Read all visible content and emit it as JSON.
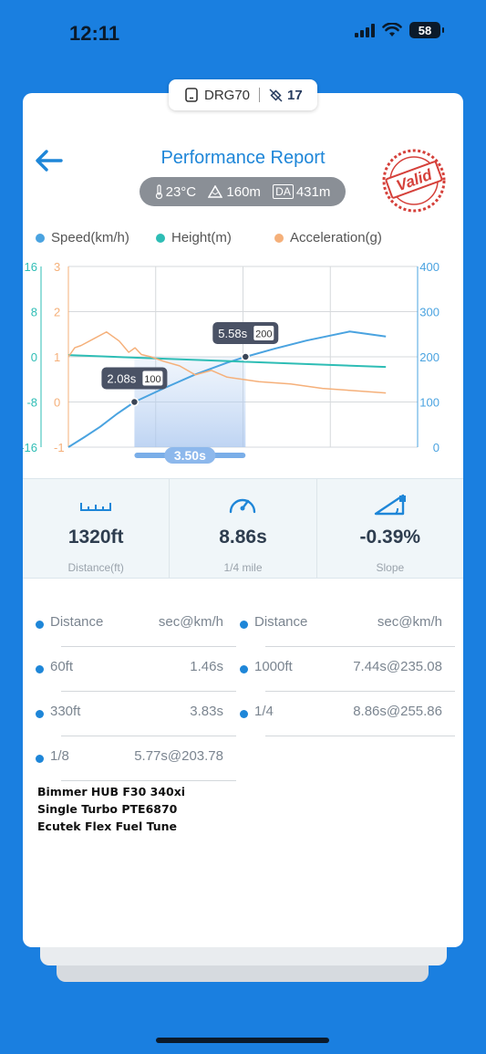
{
  "status": {
    "time": "12:11",
    "battery": "58"
  },
  "device": {
    "name": "DRG70",
    "satellites": "17"
  },
  "header": {
    "title": "Performance Report",
    "stamp": "Valid"
  },
  "conditions": {
    "temp": "23°C",
    "altitude": "160m",
    "da_label": "DA",
    "da_value": "431m"
  },
  "legend": [
    {
      "label": "Speed(km/h)",
      "color": "#4aa3e0"
    },
    {
      "label": "Height(m)",
      "color": "#2ebdb5"
    },
    {
      "label": "Acceleration(g)",
      "color": "#f5b07a"
    }
  ],
  "chart_data": {
    "type": "line",
    "x_range": [
      0,
      11
    ],
    "axes": {
      "height_ticks": [
        "16",
        "8",
        "0",
        "-8",
        "-16"
      ],
      "accel_ticks": [
        "3",
        "2",
        "1",
        "0",
        "-1"
      ],
      "speed_ticks": [
        "400",
        "300",
        "200",
        "100",
        "0"
      ],
      "speed_ylim": [
        0,
        400
      ],
      "height_ylim": [
        -16,
        16
      ],
      "accel_ylim": [
        -1,
        3
      ]
    },
    "series": [
      {
        "name": "Speed(km/h)",
        "color": "#4aa3e0",
        "x": [
          0,
          0.5,
          1,
          1.5,
          2.08,
          3,
          4,
          5,
          5.58,
          6.5,
          7.5,
          8.86,
          10
        ],
        "values": [
          0,
          22,
          45,
          72,
          100,
          130,
          161,
          187,
          200,
          218,
          236,
          256,
          245
        ]
      },
      {
        "name": "Height(m)",
        "color": "#2ebdb5",
        "x": [
          0,
          10
        ],
        "values": [
          0.3,
          -1.8
        ]
      },
      {
        "name": "Acceleration(g)",
        "color": "#f5b07a",
        "x": [
          0,
          0.2,
          0.4,
          0.8,
          1.2,
          1.6,
          1.9,
          2.1,
          2.3,
          2.6,
          3,
          3.5,
          4,
          4.5,
          5,
          5.5,
          6,
          7,
          8,
          9,
          10
        ],
        "values": [
          1.0,
          1.2,
          1.25,
          1.4,
          1.55,
          1.35,
          1.1,
          1.2,
          1.05,
          1.0,
          0.9,
          0.8,
          0.6,
          0.7,
          0.55,
          0.5,
          0.45,
          0.4,
          0.3,
          0.25,
          0.2
        ]
      }
    ],
    "markers": [
      {
        "x": 2.08,
        "speed": 100,
        "label": "2.08s",
        "tag": "100"
      },
      {
        "x": 5.58,
        "speed": 200,
        "label": "5.58s",
        "tag": "200"
      }
    ],
    "span": {
      "from": 2.08,
      "to": 5.58,
      "label": "3.50s"
    }
  },
  "stats": [
    {
      "value": "1320ft",
      "label": "Distance(ft)"
    },
    {
      "value": "8.86s",
      "label": "1/4 mile"
    },
    {
      "value": "-0.39%",
      "label": "Slope"
    }
  ],
  "times": {
    "header": {
      "k": "Distance",
      "v": "sec@km/h"
    },
    "rows": [
      {
        "k": "60ft",
        "v": "1.46s"
      },
      {
        "k": "1000ft",
        "v": "7.44s@235.08"
      },
      {
        "k": "330ft",
        "v": "3.83s"
      },
      {
        "k": "1/4",
        "v": "8.86s@255.86"
      },
      {
        "k": "1/8",
        "v": "5.77s@203.78"
      }
    ]
  },
  "notes": [
    "Bimmer HUB F30 340xi",
    "Single Turbo PTE6870",
    "Ecutek Flex Fuel Tune"
  ]
}
